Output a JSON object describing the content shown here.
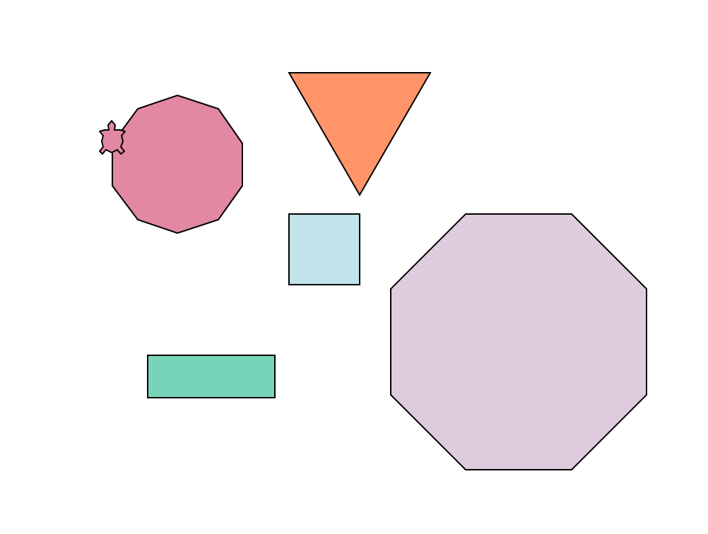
{
  "canvas": {
    "background": "#ffffff"
  },
  "shapes": [
    {
      "kind": "decagon",
      "fill": "#e288a3"
    },
    {
      "kind": "triangle",
      "fill": "#ff9468"
    },
    {
      "kind": "square",
      "fill": "#c0e4e9"
    },
    {
      "kind": "octagon",
      "fill": "#dfcbde"
    },
    {
      "kind": "rectangle",
      "fill": "#78d4b9"
    }
  ],
  "turtle": {
    "kind": "turtle-cursor",
    "fill": "#e288a3"
  }
}
